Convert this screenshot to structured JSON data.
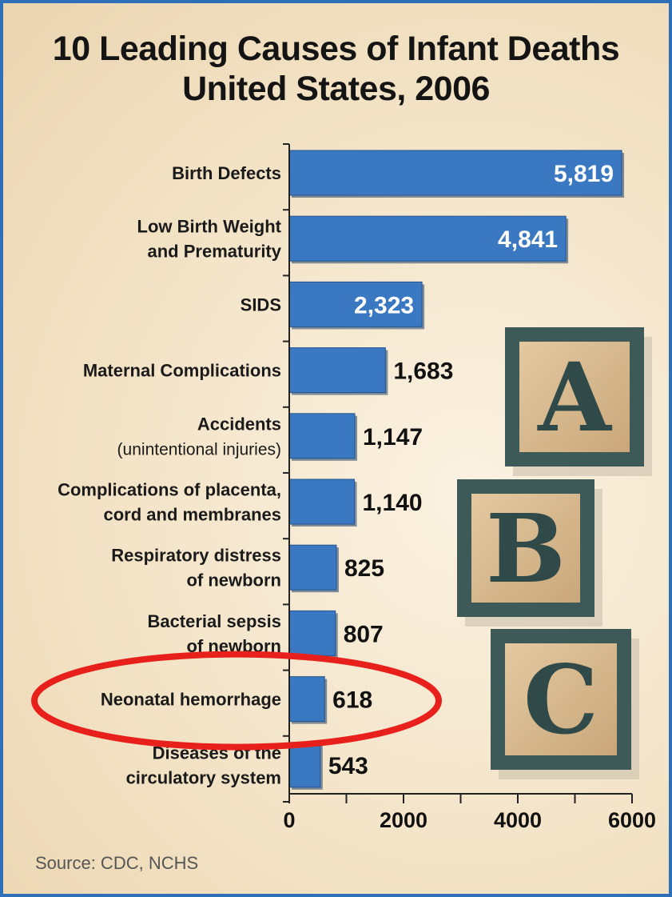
{
  "chart_data": {
    "type": "bar",
    "orientation": "horizontal",
    "title_lines": [
      "10 Leading Causes of Infant Deaths",
      "United States, 2006"
    ],
    "categories": [
      {
        "lines": [
          "Birth Defects"
        ]
      },
      {
        "lines": [
          "Low Birth Weight",
          "and Prematurity"
        ]
      },
      {
        "lines": [
          "SIDS"
        ]
      },
      {
        "lines": [
          "Maternal Complications"
        ]
      },
      {
        "lines": [
          "Accidents",
          "(unintentional injuries)"
        ]
      },
      {
        "lines": [
          "Complications of placenta,",
          "cord and membranes"
        ]
      },
      {
        "lines": [
          "Respiratory distress",
          "of newborn"
        ]
      },
      {
        "lines": [
          "Bacterial sepsis",
          "of newborn"
        ]
      },
      {
        "lines": [
          "Neonatal hemorrhage"
        ]
      },
      {
        "lines": [
          "Diseases of the",
          "circulatory system"
        ]
      }
    ],
    "values": [
      5819,
      4841,
      2323,
      1683,
      1147,
      1140,
      825,
      807,
      618,
      543
    ],
    "value_labels": [
      "5,819",
      "4,841",
      "2,323",
      "1,683",
      "1,147",
      "1,140",
      "825",
      "807",
      "618",
      "543"
    ],
    "labels_inside": [
      true,
      true,
      true,
      false,
      false,
      false,
      false,
      false,
      false,
      false
    ],
    "xlim": [
      0,
      6000
    ],
    "xticks": [
      0,
      2000,
      4000,
      6000
    ],
    "xtick_labels": [
      "0",
      "2000",
      "4000",
      "6000"
    ],
    "grid": false,
    "bar_color": "#3a78c2",
    "highlight": {
      "category_index": 8,
      "shape": "ellipse",
      "color": "#e8201c"
    }
  },
  "decoration": {
    "blocks": [
      "A",
      "B",
      "C"
    ]
  },
  "source": "Source:  CDC, NCHS"
}
